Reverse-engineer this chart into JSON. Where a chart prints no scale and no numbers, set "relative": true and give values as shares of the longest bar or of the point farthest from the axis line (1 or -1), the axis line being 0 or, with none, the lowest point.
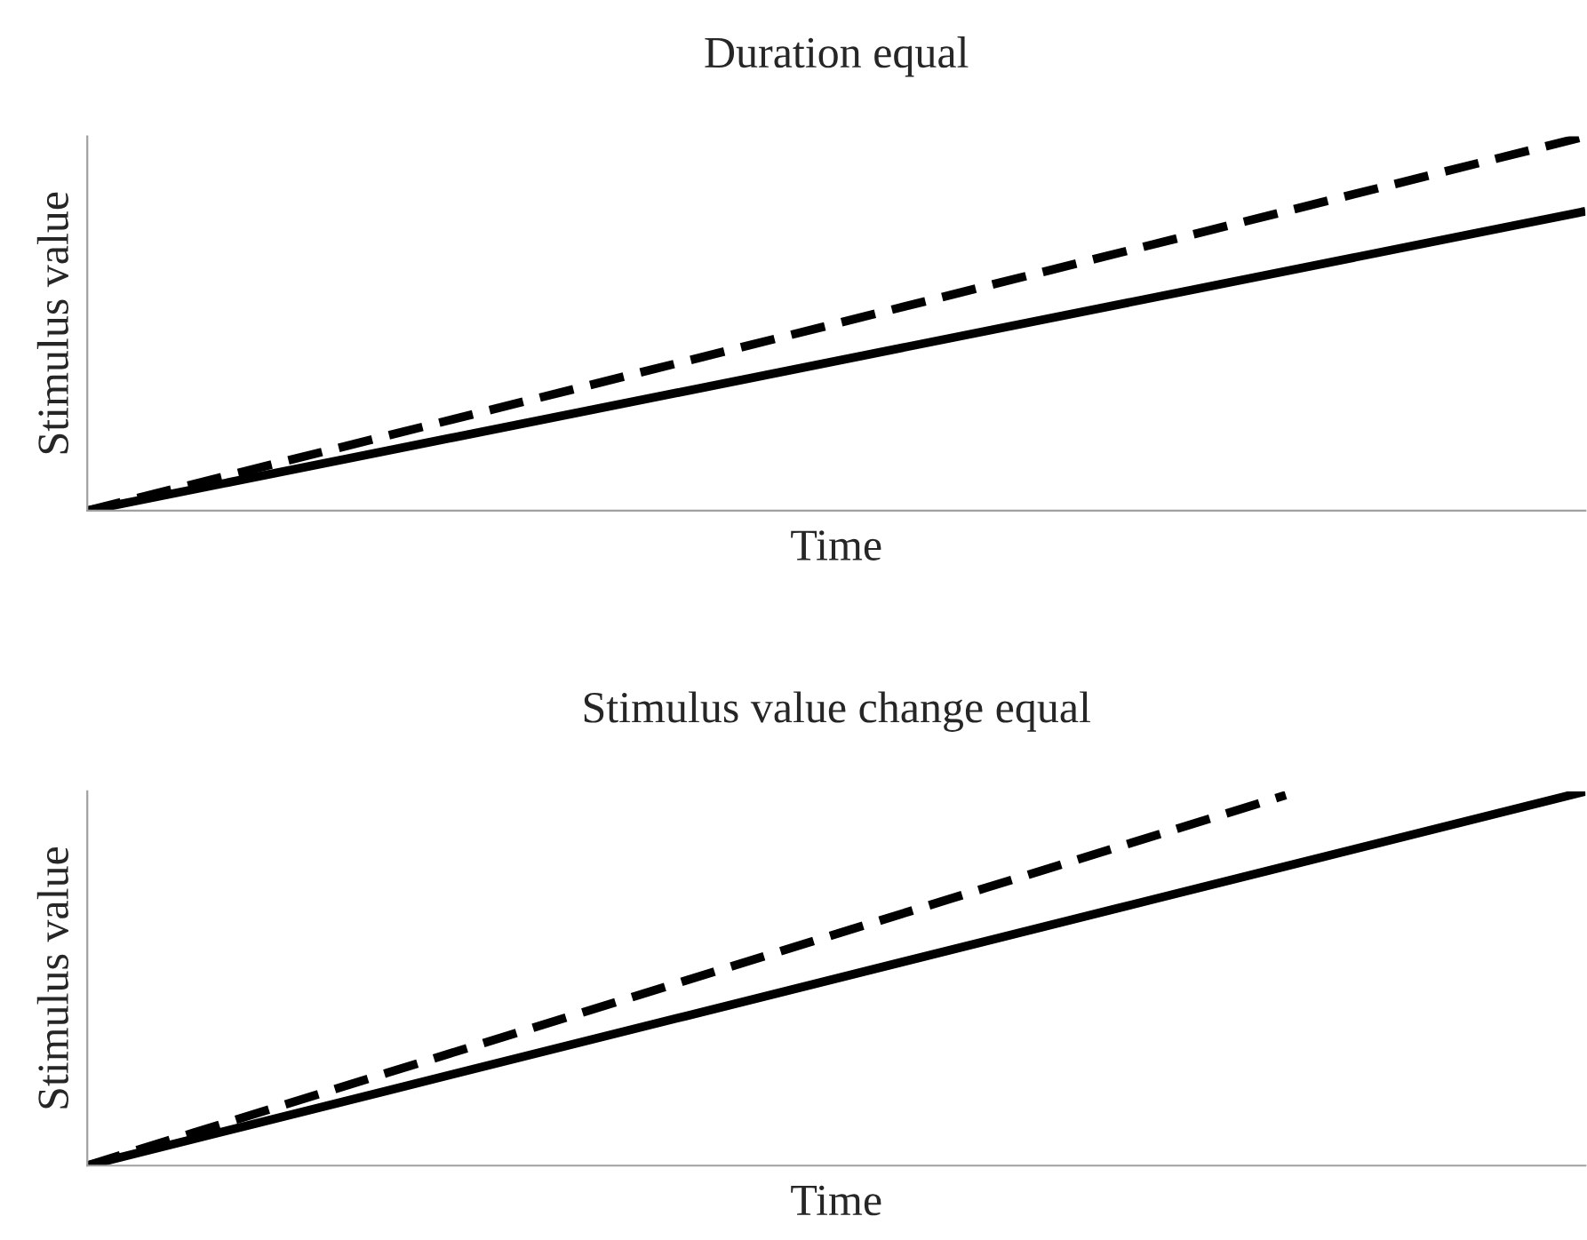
{
  "chart_data": [
    {
      "type": "line",
      "title": "Duration equal",
      "xlabel": "Time",
      "ylabel": "Stimulus value",
      "relative": true,
      "categories": [
        null,
        null
      ],
      "series": [
        {
          "color": "#000000",
          "line_style": "solid",
          "values": [
            0,
            0.8
          ]
        },
        {
          "color": "#000000",
          "line_style": "dashed",
          "values": [
            0,
            1
          ]
        }
      ]
    },
    {
      "type": "line",
      "title": "Stimulus value change equal",
      "xlabel": "Time",
      "ylabel": "Stimulus value",
      "relative": true,
      "categories": [
        null,
        null,
        null,
        null,
        null,
        null
      ],
      "series": [
        {
          "color": "#000000",
          "line_style": "solid",
          "values": [
            0,
            0.2,
            0.4,
            0.6,
            0.8,
            1
          ]
        },
        {
          "color": "#000000",
          "line_style": "dashed",
          "values": [
            0,
            0.2475,
            0.495,
            0.7425,
            0.99,
            null
          ]
        }
      ]
    }
  ]
}
